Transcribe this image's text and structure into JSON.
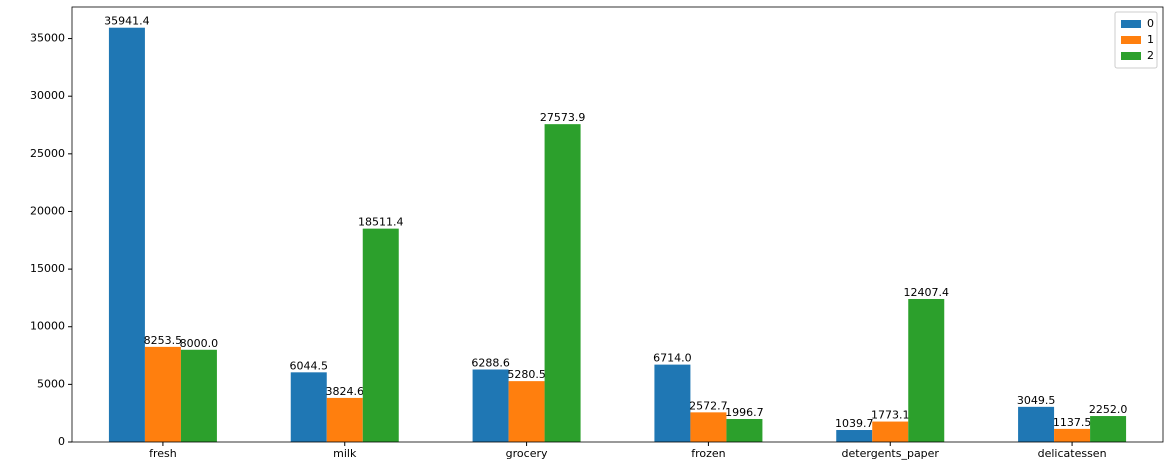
{
  "chart_data": {
    "type": "bar",
    "categories": [
      "fresh",
      "milk",
      "grocery",
      "frozen",
      "detergents_paper",
      "delicatessen"
    ],
    "series": [
      {
        "name": "0",
        "color": "#1f77b4",
        "values": [
          35941.4,
          6044.5,
          6288.6,
          6714.0,
          1039.7,
          3049.5
        ],
        "value_labels": [
          "35941.4",
          "6044.5",
          "6288.6",
          "6714.0",
          "1039.7",
          "3049.5"
        ]
      },
      {
        "name": "1",
        "color": "#ff7f0e",
        "values": [
          8253.5,
          3824.6,
          5280.5,
          2572.7,
          1773.1,
          1137.5
        ],
        "value_labels": [
          "8253.5",
          "3824.6",
          "5280.5",
          "2572.7",
          "1773.1",
          "1137.5"
        ]
      },
      {
        "name": "2",
        "color": "#2ca02c",
        "values": [
          8000.0,
          18511.4,
          27573.9,
          1996.7,
          12407.4,
          2252.0
        ],
        "value_labels": [
          "8000.0",
          "18511.4",
          "27573.9",
          "1996.7",
          "12407.4",
          "2252.0"
        ]
      }
    ],
    "ylim": [
      0,
      37738.5
    ],
    "yticks": [
      0,
      5000,
      10000,
      15000,
      20000,
      25000,
      30000,
      35000
    ],
    "legend": "upper right",
    "grid": false
  }
}
